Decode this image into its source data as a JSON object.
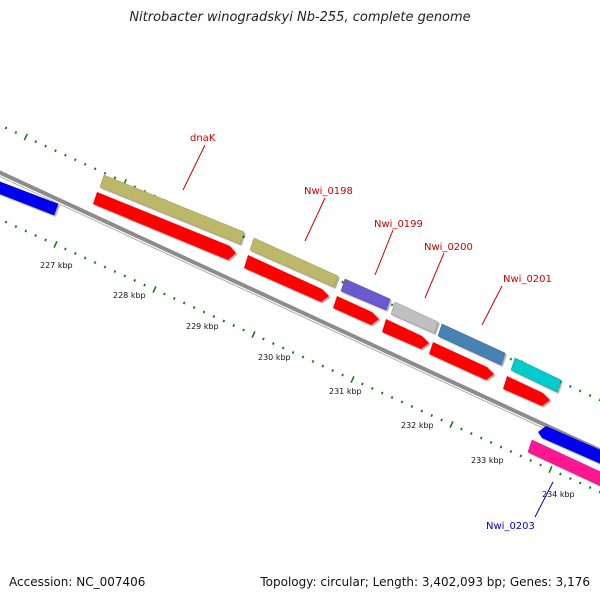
{
  "title": "Nitrobacter winogradskyi Nb-255, complete genome",
  "footer": {
    "accession": "Accession: NC_007406",
    "summary": "Topology: circular; Length: 3,402,093 bp; Genes: 3,176"
  },
  "tick_labels": [
    "227 kbp",
    "228 kbp",
    "229 kbp",
    "230 kbp",
    "231 kbp",
    "232 kbp",
    "233 kbp",
    "234 kbp"
  ],
  "gene_labels": [
    {
      "name": "dnaK",
      "color": "#cc0000"
    },
    {
      "name": "Nwi_0198",
      "color": "#cc0000"
    },
    {
      "name": "Nwi_0199",
      "color": "#cc0000"
    },
    {
      "name": "Nwi_0200",
      "color": "#cc0000"
    },
    {
      "name": "Nwi_0201",
      "color": "#cc0000"
    },
    {
      "name": "Nwi_0203",
      "color": "#0000bb"
    }
  ],
  "colors": {
    "backbone": "#8c8c8c",
    "tick": "#1a7a1a",
    "cds": "#ff0000",
    "dnaK": "#bdb76b",
    "Nwi_0198": "#bdb76b",
    "Nwi_0199": "#6a5acd",
    "Nwi_0200": "#c0c0c0",
    "Nwi_0201": "#4682b4",
    "teal": "#00cccc",
    "blue": "#0000ee",
    "pink": "#ff1493"
  }
}
